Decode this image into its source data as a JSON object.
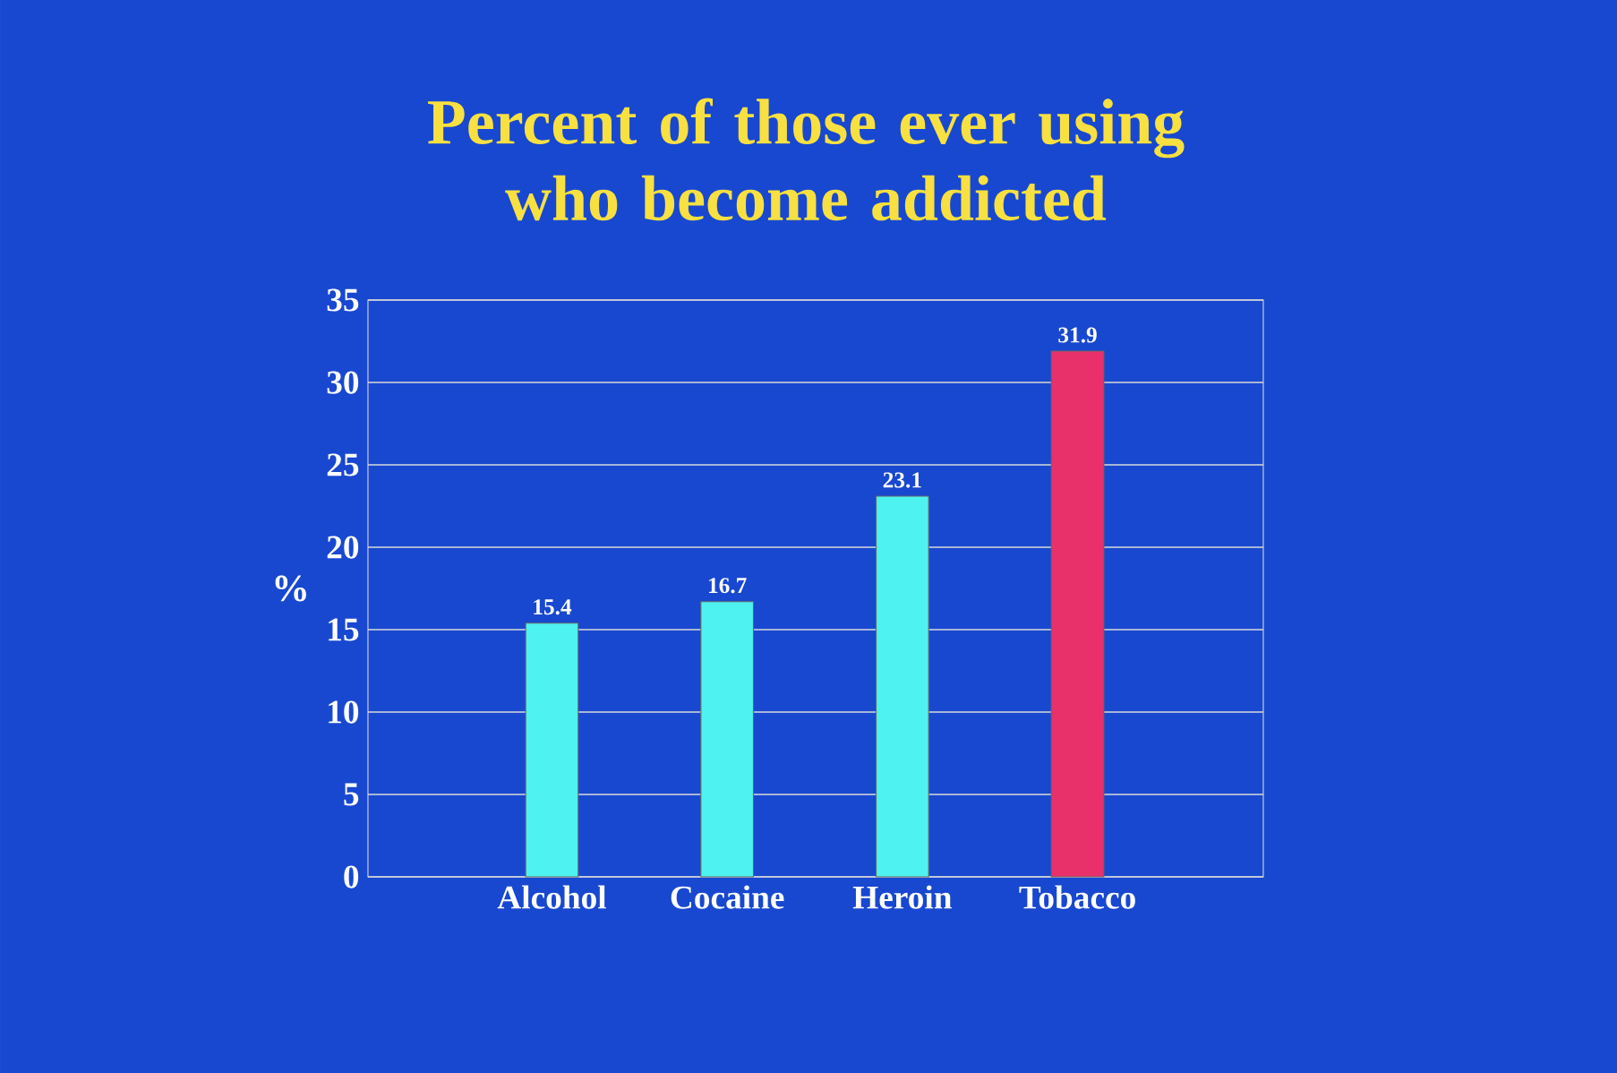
{
  "chart_data": {
    "type": "bar",
    "title": "Percent of those ever using who become addicted",
    "ylabel": "%",
    "categories": [
      "Alcohol",
      "Cocaine",
      "Heroin",
      "Tobacco"
    ],
    "values": [
      15.4,
      16.7,
      23.1,
      31.9
    ],
    "colors": [
      "#4ef2f0",
      "#4ef2f0",
      "#4ef2f0",
      "#e8306a"
    ],
    "ylim": [
      0,
      35
    ],
    "yticks": [
      0,
      5,
      10,
      15,
      20,
      25,
      30,
      35
    ],
    "grid": "y",
    "data_labels": true
  }
}
